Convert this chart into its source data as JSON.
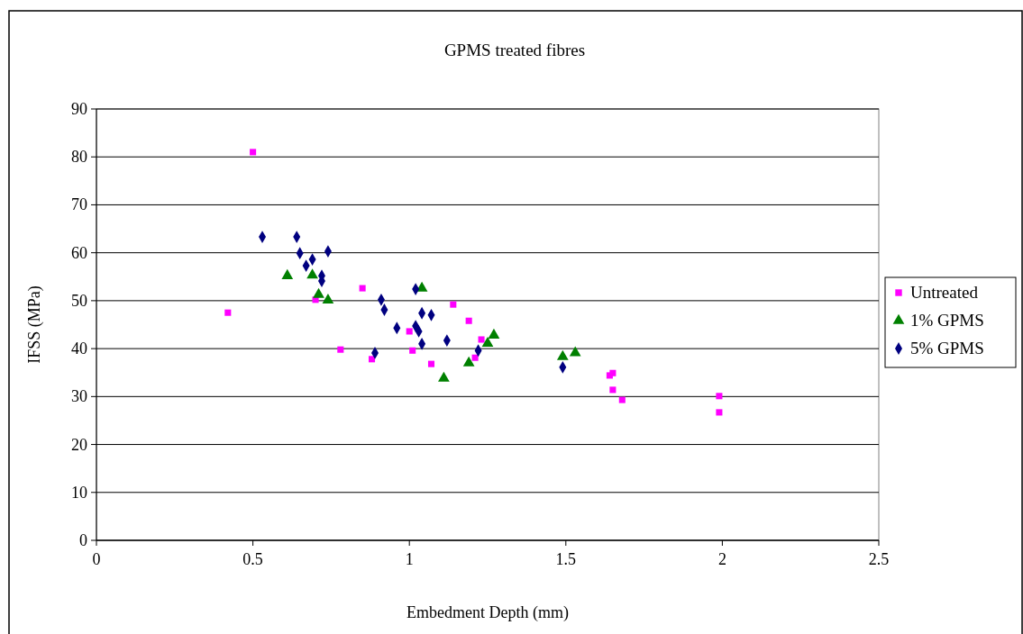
{
  "chart_data": {
    "type": "scatter",
    "title": "GPMS treated fibres",
    "xlabel": "Embedment Depth (mm)",
    "ylabel": "IFSS (MPa)",
    "xlim": [
      0,
      2.5
    ],
    "xticks": [
      0,
      0.5,
      1,
      1.5,
      2,
      2.5
    ],
    "ylim": [
      0,
      90
    ],
    "yticks": [
      0,
      10,
      20,
      30,
      40,
      50,
      60,
      70,
      80,
      90
    ],
    "grid": "y",
    "legend": "right",
    "series": [
      {
        "name": "Untreated",
        "color": "#ff00ff",
        "marker": "square",
        "x": [
          0.42,
          0.5,
          0.7,
          0.78,
          0.85,
          0.88,
          1.0,
          1.01,
          1.07,
          1.14,
          1.19,
          1.21,
          1.23,
          1.64,
          1.65,
          1.65,
          1.68,
          1.99,
          1.99
        ],
        "values": [
          47.5,
          81.0,
          50.2,
          39.8,
          52.6,
          37.8,
          43.6,
          39.6,
          36.8,
          49.2,
          45.8,
          38.1,
          41.9,
          34.4,
          34.9,
          31.4,
          29.3,
          30.1,
          26.7
        ]
      },
      {
        "name": "1% GPMS",
        "color": "#008000",
        "marker": "triangle",
        "x": [
          0.61,
          0.69,
          0.71,
          0.74,
          1.04,
          1.11,
          1.19,
          1.25,
          1.27,
          1.49,
          1.53
        ],
        "values": [
          55.2,
          55.3,
          51.3,
          50.1,
          52.6,
          33.8,
          37.0,
          41.1,
          42.8,
          38.3,
          39.1
        ]
      },
      {
        "name": "5% GPMS",
        "color": "#000080",
        "marker": "diamond",
        "x": [
          0.53,
          0.64,
          0.65,
          0.67,
          0.69,
          0.72,
          0.72,
          0.74,
          0.89,
          0.91,
          0.92,
          0.96,
          1.02,
          1.04,
          1.07,
          1.02,
          1.03,
          1.04,
          1.12,
          1.22,
          1.49
        ],
        "values": [
          63.3,
          63.3,
          59.9,
          57.3,
          58.6,
          55.2,
          54.1,
          60.3,
          39.1,
          50.2,
          48.1,
          44.3,
          52.4,
          47.4,
          47.0,
          44.7,
          43.6,
          41.0,
          41.7,
          39.6,
          36.1
        ]
      }
    ]
  }
}
